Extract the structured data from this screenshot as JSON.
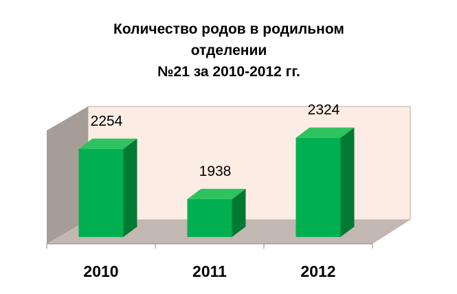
{
  "chart_data": {
    "type": "bar3d",
    "title": [
      "Количество родов в родильном",
      "отделении",
      "№21 за 2010-2012 гг."
    ],
    "categories": [
      "2010",
      "2011",
      "2012"
    ],
    "values": [
      2254,
      1938,
      2324
    ],
    "color": "#00b050",
    "ylim": [
      1700,
      2400
    ]
  }
}
